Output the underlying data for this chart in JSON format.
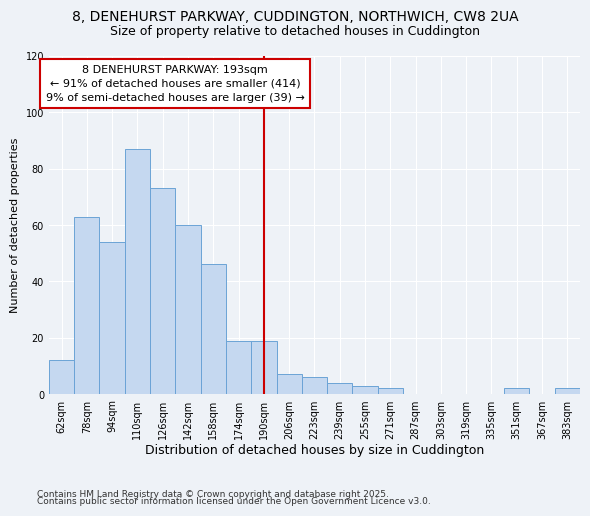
{
  "title": "8, DENEHURST PARKWAY, CUDDINGTON, NORTHWICH, CW8 2UA",
  "subtitle": "Size of property relative to detached houses in Cuddington",
  "xlabel": "Distribution of detached houses by size in Cuddington",
  "ylabel": "Number of detached properties",
  "categories": [
    "62sqm",
    "78sqm",
    "94sqm",
    "110sqm",
    "126sqm",
    "142sqm",
    "158sqm",
    "174sqm",
    "190sqm",
    "206sqm",
    "223sqm",
    "239sqm",
    "255sqm",
    "271sqm",
    "287sqm",
    "303sqm",
    "319sqm",
    "335sqm",
    "351sqm",
    "367sqm",
    "383sqm"
  ],
  "values": [
    12,
    63,
    54,
    87,
    73,
    60,
    46,
    19,
    19,
    7,
    6,
    4,
    3,
    2,
    0,
    0,
    0,
    0,
    2,
    0,
    2
  ],
  "bar_color": "#c5d8f0",
  "bar_edge_color": "#6ba3d6",
  "vline_x_idx": 8,
  "vline_color": "#cc0000",
  "annotation_line1": "8 DENEHURST PARKWAY: 193sqm",
  "annotation_line2": "← 91% of detached houses are smaller (414)",
  "annotation_line3": "9% of semi-detached houses are larger (39) →",
  "annotation_box_color": "#cc0000",
  "annotation_bg_color": "#ffffff",
  "footnote1": "Contains HM Land Registry data © Crown copyright and database right 2025.",
  "footnote2": "Contains public sector information licensed under the Open Government Licence v3.0.",
  "ylim": [
    0,
    120
  ],
  "yticks": [
    0,
    20,
    40,
    60,
    80,
    100,
    120
  ],
  "bg_color": "#eef2f7",
  "title_fontsize": 10,
  "subtitle_fontsize": 9,
  "xlabel_fontsize": 9,
  "ylabel_fontsize": 8,
  "tick_fontsize": 7,
  "annotation_fontsize": 8,
  "footnote_fontsize": 6.5
}
